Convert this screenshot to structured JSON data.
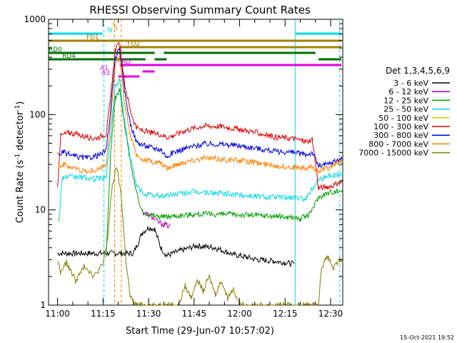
{
  "chart_data": {
    "type": "line",
    "title": "RHESSI Observing Summary Count Rates",
    "xlabel": "Start Time (29-Jun-07 10:57:02)",
    "ylabel_main": "Count Rate (s",
    "ylabel_sup1": "-1",
    "ylabel_mid": " detector",
    "ylabel_sup2": "-1",
    "ylabel_end": ")",
    "y_scale": "log",
    "ylim": [
      1,
      1000
    ],
    "x_range_minutes": [
      -2.966,
      94.0
    ],
    "x_ticks": [
      {
        "label": "11:00",
        "min": 0
      },
      {
        "label": "11:15",
        "min": 15
      },
      {
        "label": "11:30",
        "min": 30
      },
      {
        "label": "11:45",
        "min": 45
      },
      {
        "label": "12:00",
        "min": 60
      },
      {
        "label": "12:15",
        "min": 75
      },
      {
        "label": "12:30",
        "min": 90
      }
    ],
    "y_ticks": [
      {
        "label": "1",
        "v": 1
      },
      {
        "label": "10",
        "v": 10
      },
      {
        "label": "100",
        "v": 100
      },
      {
        "label": "1000",
        "v": 1000
      }
    ],
    "legend_title": "Det 1,3,4,5,6,9",
    "legend_position": "right",
    "series": [
      {
        "name": "3 - 6 keV",
        "color": "#000000",
        "points": [
          [
            0,
            3.5
          ],
          [
            25,
            3.5
          ],
          [
            28,
            5.8
          ],
          [
            30,
            6.5
          ],
          [
            32,
            6.3
          ],
          [
            34,
            4
          ],
          [
            36,
            3.3
          ],
          [
            40,
            3.7
          ],
          [
            46,
            4.2
          ],
          [
            52,
            4.0
          ],
          [
            58,
            3.4
          ],
          [
            62,
            3.2
          ],
          [
            66,
            3.0
          ],
          [
            71,
            2.9
          ],
          [
            75,
            2.8
          ],
          [
            78,
            2.7
          ]
        ]
      },
      {
        "name": "6 - 12 keV",
        "color": "#b000b0",
        "points": [
          [
            28,
            9.5
          ],
          [
            31,
            8.5
          ],
          [
            33,
            7.5
          ],
          [
            35,
            7.0
          ],
          [
            37,
            6.8
          ]
        ]
      },
      {
        "name": "12 - 25 keV",
        "color": "#00a000",
        "points": [
          [
            16,
            3
          ],
          [
            17.5,
            40
          ],
          [
            19,
            150
          ],
          [
            20.5,
            180
          ],
          [
            22,
            80
          ],
          [
            23.5,
            40
          ],
          [
            26,
            15
          ],
          [
            28,
            9.5
          ],
          [
            31,
            8.8
          ],
          [
            34,
            8.5
          ],
          [
            36,
            8.5
          ],
          [
            45,
            9
          ],
          [
            55,
            9
          ],
          [
            65,
            8.8
          ],
          [
            74,
            8.5
          ],
          [
            78,
            8.3
          ],
          [
            80,
            8
          ],
          [
            83,
            9.0
          ],
          [
            86,
            13.5
          ],
          [
            90,
            15.5
          ],
          [
            94,
            16
          ]
        ]
      },
      {
        "name": "25 - 50 keV",
        "color": "#00d8e8",
        "points": [
          [
            0.5,
            8
          ],
          [
            1.5,
            22
          ],
          [
            8,
            22
          ],
          [
            12,
            21
          ],
          [
            16,
            22
          ],
          [
            17.5,
            60
          ],
          [
            19,
            200
          ],
          [
            20.5,
            230
          ],
          [
            22,
            90
          ],
          [
            24,
            35
          ],
          [
            26,
            18
          ],
          [
            28,
            15
          ],
          [
            30,
            14.5
          ],
          [
            32,
            14
          ],
          [
            35,
            14
          ],
          [
            38,
            14.5
          ],
          [
            45,
            15.5
          ],
          [
            52,
            15
          ],
          [
            58,
            14.5
          ],
          [
            65,
            14
          ],
          [
            74,
            13.5
          ],
          [
            78,
            13.5
          ],
          [
            80,
            13
          ],
          [
            82,
            13.5
          ],
          [
            86,
            21
          ],
          [
            90,
            23
          ],
          [
            94,
            24
          ]
        ]
      },
      {
        "name": "50 - 100 keV",
        "color": "#d8c800",
        "points": [
          [
            0,
            7.8
          ],
          [
            0.8,
            7.5
          ]
        ]
      },
      {
        "name": "100 - 300 keV",
        "color": "#e00000",
        "points": [
          [
            0,
            17
          ],
          [
            1,
            60
          ],
          [
            4,
            65
          ],
          [
            8,
            60
          ],
          [
            12,
            56
          ],
          [
            16,
            62
          ],
          [
            17.5,
            150
          ],
          [
            19,
            480
          ],
          [
            20.5,
            560
          ],
          [
            22,
            220
          ],
          [
            24,
            110
          ],
          [
            26,
            72
          ],
          [
            28,
            68
          ],
          [
            31,
            64
          ],
          [
            34,
            62
          ],
          [
            36,
            58
          ],
          [
            38,
            60
          ],
          [
            42,
            68
          ],
          [
            48,
            76
          ],
          [
            54,
            75
          ],
          [
            60,
            70
          ],
          [
            66,
            64
          ],
          [
            72,
            58
          ],
          [
            78,
            56
          ],
          [
            82,
            52
          ],
          [
            84,
            55
          ],
          [
            86,
            17
          ],
          [
            89,
            17.5
          ],
          [
            92,
            18.5
          ],
          [
            94,
            20
          ]
        ]
      },
      {
        "name": "300 - 800 keV",
        "color": "#0000e0",
        "points": [
          [
            0,
            38
          ],
          [
            2,
            40
          ],
          [
            6,
            36
          ],
          [
            10,
            35
          ],
          [
            14,
            38
          ],
          [
            16,
            42
          ],
          [
            17.5,
            110
          ],
          [
            19,
            400
          ],
          [
            20.5,
            480
          ],
          [
            22,
            180
          ],
          [
            24,
            80
          ],
          [
            26,
            52
          ],
          [
            28,
            48
          ],
          [
            31,
            45
          ],
          [
            34,
            43
          ],
          [
            36,
            36
          ],
          [
            38,
            40
          ],
          [
            42,
            44
          ],
          [
            48,
            49
          ],
          [
            54,
            49
          ],
          [
            60,
            47
          ],
          [
            66,
            44
          ],
          [
            72,
            41
          ],
          [
            78,
            40
          ],
          [
            82,
            38
          ],
          [
            84,
            40
          ],
          [
            86,
            29
          ],
          [
            89,
            30
          ],
          [
            92,
            33
          ],
          [
            94,
            35
          ]
        ]
      },
      {
        "name": "800 - 7000 keV",
        "color": "#ff8000",
        "points": [
          [
            0,
            28
          ],
          [
            2,
            30
          ],
          [
            6,
            27
          ],
          [
            10,
            25
          ],
          [
            14,
            27
          ],
          [
            16,
            30
          ],
          [
            17.5,
            80
          ],
          [
            19,
            330
          ],
          [
            20.5,
            400
          ],
          [
            22,
            140
          ],
          [
            24,
            60
          ],
          [
            26,
            38
          ],
          [
            28,
            34
          ],
          [
            31,
            32
          ],
          [
            34,
            31
          ],
          [
            36,
            27
          ],
          [
            38,
            29
          ],
          [
            42,
            32
          ],
          [
            48,
            35
          ],
          [
            54,
            34
          ],
          [
            60,
            33
          ],
          [
            66,
            31
          ],
          [
            72,
            29
          ],
          [
            78,
            28
          ],
          [
            82,
            27
          ],
          [
            84,
            28
          ],
          [
            86,
            26
          ],
          [
            89,
            27
          ],
          [
            92,
            31
          ],
          [
            94,
            32
          ]
        ]
      },
      {
        "name": "7000 - 15000 keV",
        "color": "#808000",
        "points": [
          [
            0,
            3.0
          ],
          [
            1,
            2.2
          ],
          [
            3,
            2.8
          ],
          [
            6,
            1.8
          ],
          [
            9,
            2.6
          ],
          [
            12,
            2.0
          ],
          [
            15,
            2.7
          ],
          [
            16.5,
            5
          ],
          [
            18,
            18
          ],
          [
            19.5,
            28
          ],
          [
            21,
            14
          ],
          [
            22.5,
            3
          ],
          [
            24,
            1.2
          ],
          [
            26,
            1
          ],
          [
            40,
            1
          ],
          [
            42,
            1.6
          ],
          [
            44,
            1.2
          ],
          [
            46,
            1.9
          ],
          [
            48,
            1.4
          ],
          [
            50,
            2.0
          ],
          [
            52,
            1.3
          ],
          [
            54,
            1.8
          ],
          [
            56,
            1.2
          ],
          [
            58,
            1.5
          ],
          [
            60,
            1
          ],
          [
            86,
            1
          ],
          [
            87,
            2.5
          ],
          [
            89,
            3.2
          ],
          [
            91,
            2.4
          ],
          [
            93,
            3.0
          ],
          [
            94,
            2.8
          ]
        ]
      }
    ],
    "vlines": [
      {
        "min": 15.3,
        "color": "#00d8e8",
        "dash": true
      },
      {
        "min": 18.8,
        "color": "#ff8000",
        "dash": true
      },
      {
        "min": 21.0,
        "color": "#ff8000",
        "dash": true
      },
      {
        "min": 78.3,
        "color": "#00d8e8",
        "dash": false
      },
      {
        "min": 93.0,
        "color": "#00d8e8",
        "dash": true
      }
    ],
    "flag_bars": [
      {
        "label": "N",
        "color": "#00d8e8",
        "y": 47,
        "segments": [
          [
            -2.9,
            14.8
          ],
          [
            78.5,
            93.5
          ]
        ],
        "label_min": 16.5
      },
      {
        "label": "S",
        "color": "#ff8000",
        "y": 40,
        "segments": [
          [
            19.2,
            19.6
          ]
        ],
        "label_min": 18.0
      },
      {
        "label": "FD1",
        "color": "#a08000",
        "y": 57,
        "segments": [
          [
            -2.9,
            30.5
          ],
          [
            -0.5,
            93.5
          ]
        ],
        "label_min": 9.5
      },
      {
        "label": "FD2",
        "color": "#a08000",
        "y": 66,
        "segments": [
          [
            20.3,
            93.5
          ]
        ],
        "label_min": 23.0
      },
      {
        "label": "RD0",
        "color": "#007000",
        "y": 74,
        "segments": [
          [
            -2.9,
            32.0
          ],
          [
            35.0,
            85.0
          ]
        ],
        "label_min": -3.0
      },
      {
        "label": "RD4",
        "color": "#007000",
        "y": 83,
        "segments": [
          [
            -2.9,
            29.0
          ],
          [
            32.0,
            36.0
          ],
          [
            86.0,
            93.5
          ]
        ],
        "label_min": 1.5
      },
      {
        "label": "AD",
        "color": "#e000e0",
        "y": 91,
        "segments": [
          [
            20.5,
            93.5
          ]
        ],
        "label_min": 21.0
      },
      {
        "label": "A1",
        "color": "#e000e0",
        "y": 100,
        "segments": [
          [
            28.0,
            32.0
          ]
        ],
        "label_min": 14.0
      },
      {
        "label": "A3",
        "color": "#e000e0",
        "y": 107,
        "segments": [
          [
            20.0,
            27.0
          ]
        ],
        "label_min": 14.5
      }
    ]
  },
  "timestamp": "15-Oct-2021 19:52"
}
